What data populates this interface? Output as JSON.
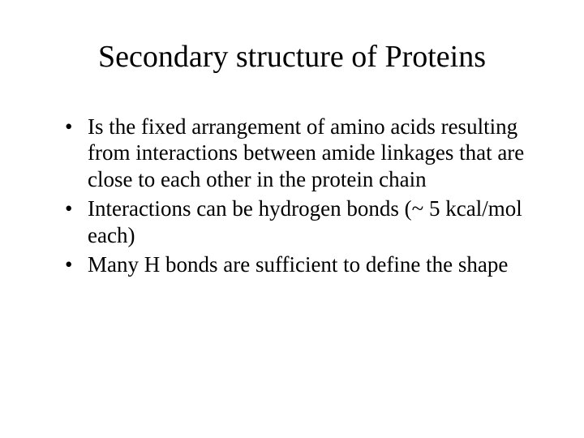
{
  "slide": {
    "title": "Secondary structure of Proteins",
    "bullets": [
      "Is the fixed arrangement of amino acids resulting from interactions between amide linkages that are close to each other in the protein chain",
      "Interactions can be  hydrogen bonds (~ 5 kcal/mol each)",
      "Many H bonds are sufficient to define the shape"
    ]
  },
  "styling": {
    "background_color": "#ffffff",
    "text_color": "#000000",
    "title_fontsize": 38,
    "body_fontsize": 27,
    "font_family": "Times New Roman"
  }
}
